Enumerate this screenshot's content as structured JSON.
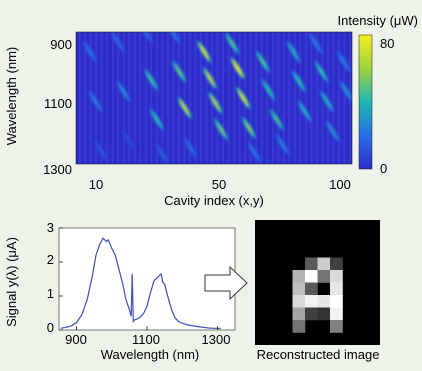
{
  "colors": {
    "background": "#eef3ea",
    "heatmap_low": "#2c2cc8",
    "heatmap_high": "#f2ee1e",
    "line": "#3a4fb8",
    "image_bg": "#000000"
  },
  "heatmap": {
    "colorbar_title": "Intensity (μW)",
    "colorbar_max_label": "80",
    "colorbar_min_label": "0"
  },
  "reconstruction": {
    "caption": "Reconstructed image",
    "arrow_icon": "right-arrow-icon",
    "pixels": [
      [
        0,
        0,
        0,
        0,
        0,
        0,
        0,
        0,
        0,
        0
      ],
      [
        0,
        0,
        0,
        0,
        0,
        0,
        0,
        0,
        0,
        0
      ],
      [
        0,
        0,
        0,
        0,
        0,
        0,
        0,
        0,
        0,
        0
      ],
      [
        0,
        0,
        0,
        0,
        0.35,
        0.8,
        0.25,
        0,
        0,
        0
      ],
      [
        0,
        0,
        0,
        0.7,
        1,
        0.45,
        0.85,
        0,
        0,
        0
      ],
      [
        0,
        0,
        0,
        0.75,
        0.35,
        0,
        0.9,
        0,
        0,
        0
      ],
      [
        0,
        0,
        0,
        0.85,
        0.95,
        0.9,
        1,
        0,
        0,
        0
      ],
      [
        0,
        0,
        0,
        0.65,
        0.25,
        0.2,
        0.95,
        0,
        0,
        0
      ],
      [
        0,
        0,
        0,
        0.45,
        0,
        0,
        0.5,
        0,
        0,
        0
      ],
      [
        0,
        0,
        0,
        0,
        0,
        0,
        0,
        0,
        0,
        0
      ]
    ]
  },
  "chart_data": [
    {
      "type": "heatmap",
      "xlabel": "Cavity index (x,y)",
      "ylabel": "Wavelength (nm)",
      "x_ticks": [
        "10",
        "50",
        "100"
      ],
      "y_ticks": [
        "900",
        "1100",
        "1300"
      ],
      "xlim": [
        1,
        100
      ],
      "ylim": [
        900,
        1300
      ],
      "color_range": [
        0,
        80
      ],
      "grid": false,
      "columns": 100,
      "peaks": [
        {
          "cavity": 6,
          "wavelength": 960,
          "intensity": 20
        },
        {
          "cavity": 8,
          "wavelength": 1110,
          "intensity": 22
        },
        {
          "cavity": 10,
          "wavelength": 1260,
          "intensity": 12
        },
        {
          "cavity": 16,
          "wavelength": 930,
          "intensity": 18
        },
        {
          "cavity": 18,
          "wavelength": 1080,
          "intensity": 26
        },
        {
          "cavity": 20,
          "wavelength": 1230,
          "intensity": 10
        },
        {
          "cavity": 26,
          "wavelength": 900,
          "intensity": 18
        },
        {
          "cavity": 28,
          "wavelength": 1045,
          "intensity": 42
        },
        {
          "cavity": 30,
          "wavelength": 1165,
          "intensity": 40
        },
        {
          "cavity": 32,
          "wavelength": 1270,
          "intensity": 14
        },
        {
          "cavity": 36,
          "wavelength": 905,
          "intensity": 20
        },
        {
          "cavity": 38,
          "wavelength": 1020,
          "intensity": 48
        },
        {
          "cavity": 40,
          "wavelength": 1130,
          "intensity": 62
        },
        {
          "cavity": 42,
          "wavelength": 1250,
          "intensity": 18
        },
        {
          "cavity": 47,
          "wavelength": 960,
          "intensity": 65
        },
        {
          "cavity": 49,
          "wavelength": 1040,
          "intensity": 60
        },
        {
          "cavity": 51,
          "wavelength": 1115,
          "intensity": 58
        },
        {
          "cavity": 53,
          "wavelength": 1195,
          "intensity": 50
        },
        {
          "cavity": 57,
          "wavelength": 935,
          "intensity": 45
        },
        {
          "cavity": 59,
          "wavelength": 1010,
          "intensity": 72
        },
        {
          "cavity": 61,
          "wavelength": 1100,
          "intensity": 66
        },
        {
          "cavity": 63,
          "wavelength": 1190,
          "intensity": 52
        },
        {
          "cavity": 65,
          "wavelength": 1265,
          "intensity": 20
        },
        {
          "cavity": 68,
          "wavelength": 990,
          "intensity": 45
        },
        {
          "cavity": 70,
          "wavelength": 1075,
          "intensity": 40
        },
        {
          "cavity": 73,
          "wavelength": 1165,
          "intensity": 44
        },
        {
          "cavity": 75,
          "wavelength": 1240,
          "intensity": 22
        },
        {
          "cavity": 79,
          "wavelength": 960,
          "intensity": 35
        },
        {
          "cavity": 81,
          "wavelength": 1050,
          "intensity": 40
        },
        {
          "cavity": 83,
          "wavelength": 1140,
          "intensity": 36
        },
        {
          "cavity": 87,
          "wavelength": 935,
          "intensity": 22
        },
        {
          "cavity": 89,
          "wavelength": 1020,
          "intensity": 40
        },
        {
          "cavity": 91,
          "wavelength": 1110,
          "intensity": 36
        },
        {
          "cavity": 93,
          "wavelength": 1200,
          "intensity": 28
        },
        {
          "cavity": 97,
          "wavelength": 990,
          "intensity": 22
        },
        {
          "cavity": 98,
          "wavelength": 1080,
          "intensity": 28
        }
      ]
    },
    {
      "type": "line",
      "xlabel": "Wavelength (nm)",
      "ylabel": "Signal y(λ) (μA)",
      "x_ticks": [
        "900",
        "1100",
        "1300"
      ],
      "y_ticks": [
        "0",
        "1",
        "2",
        "3"
      ],
      "xlim": [
        850,
        1350
      ],
      "ylim": [
        0,
        3
      ],
      "grid": false,
      "series": [
        {
          "x": [
            855,
            870,
            885,
            900,
            915,
            930,
            945,
            955,
            965,
            975,
            985,
            990,
            1000,
            1010,
            1020,
            1030,
            1040,
            1050,
            1055,
            1058,
            1061,
            1065,
            1072,
            1080,
            1090,
            1100,
            1110,
            1120,
            1130,
            1140,
            1145,
            1150,
            1160,
            1170,
            1180,
            1190,
            1200,
            1215,
            1230,
            1245,
            1260,
            1275,
            1290,
            1310
          ],
          "y": [
            0.05,
            0.08,
            0.12,
            0.22,
            0.45,
            0.9,
            1.6,
            2.2,
            2.5,
            2.7,
            2.6,
            2.65,
            2.4,
            2.2,
            1.8,
            1.4,
            0.9,
            0.6,
            0.4,
            1.65,
            0.25,
            0.3,
            0.32,
            0.38,
            0.48,
            0.7,
            1.1,
            1.45,
            1.55,
            1.65,
            1.4,
            1.35,
            0.95,
            0.6,
            0.35,
            0.25,
            0.2,
            0.15,
            0.12,
            0.1,
            0.08,
            0.06,
            0.05,
            0.05
          ]
        }
      ]
    }
  ]
}
